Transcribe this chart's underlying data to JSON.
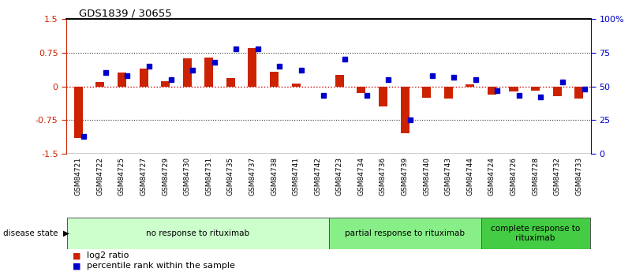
{
  "title": "GDS1839 / 30655",
  "samples": [
    "GSM84721",
    "GSM84722",
    "GSM84725",
    "GSM84727",
    "GSM84729",
    "GSM84730",
    "GSM84731",
    "GSM84735",
    "GSM84737",
    "GSM84738",
    "GSM84741",
    "GSM84742",
    "GSM84723",
    "GSM84734",
    "GSM84736",
    "GSM84739",
    "GSM84740",
    "GSM84743",
    "GSM84744",
    "GSM84724",
    "GSM84726",
    "GSM84728",
    "GSM84732",
    "GSM84733"
  ],
  "log2_ratio": [
    -1.15,
    0.1,
    0.3,
    0.4,
    0.12,
    0.63,
    0.65,
    0.18,
    0.85,
    0.32,
    0.07,
    0.0,
    0.25,
    -0.15,
    -0.45,
    -1.05,
    -0.25,
    -0.28,
    0.05,
    -0.18,
    -0.12,
    -0.1,
    -0.22,
    -0.28
  ],
  "percentile": [
    13,
    60,
    58,
    65,
    55,
    62,
    68,
    78,
    78,
    65,
    62,
    43,
    70,
    43,
    55,
    25,
    58,
    57,
    55,
    47,
    43,
    42,
    53,
    48
  ],
  "bar_color": "#cc2200",
  "square_color": "#0000cc",
  "ylim_left": [
    -1.5,
    1.5
  ],
  "ylim_right": [
    0,
    100
  ],
  "groups": [
    {
      "label": "no response to rituximab",
      "start": 0,
      "end": 11,
      "color": "#ccffcc"
    },
    {
      "label": "partial response to rituximab",
      "start": 12,
      "end": 18,
      "color": "#88ee88"
    },
    {
      "label": "complete response to\nrituximab",
      "start": 19,
      "end": 23,
      "color": "#44cc44"
    }
  ],
  "group_header": "disease state",
  "legend_items": [
    {
      "label": "log2 ratio",
      "color": "#cc2200"
    },
    {
      "label": "percentile rank within the sample",
      "color": "#0000cc"
    }
  ],
  "background_color": "#ffffff",
  "bar_color_r": "#cc2200",
  "square_color_b": "#0000cc",
  "tick_label_bg": "#cccccc",
  "hline_zero_color": "#cc0000",
  "hline_dotted_color": "#333333"
}
